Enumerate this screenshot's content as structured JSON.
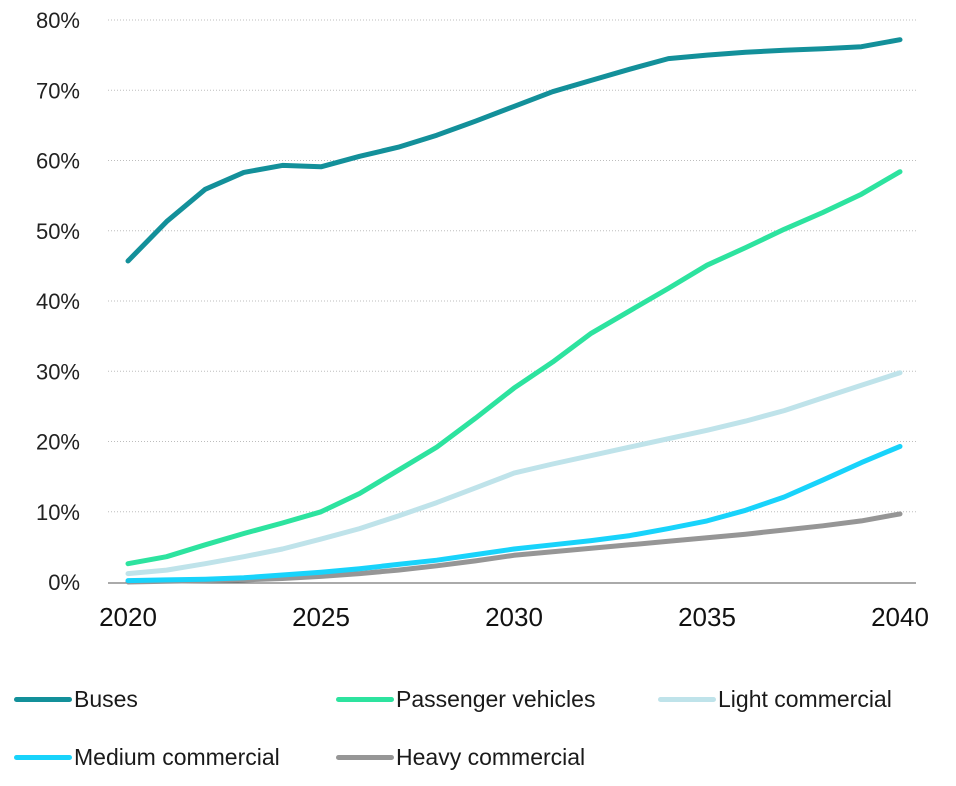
{
  "chart_data": {
    "type": "line",
    "x": [
      2020,
      2021,
      2022,
      2023,
      2024,
      2025,
      2026,
      2027,
      2028,
      2029,
      2030,
      2031,
      2032,
      2033,
      2034,
      2035,
      2036,
      2037,
      2038,
      2039,
      2040
    ],
    "xticks": [
      "2020",
      "2025",
      "2030",
      "2035",
      "2040"
    ],
    "xtick_values": [
      2020,
      2025,
      2030,
      2035,
      2040
    ],
    "yticks": [
      "0%",
      "10%",
      "20%",
      "30%",
      "40%",
      "50%",
      "60%",
      "70%",
      "80%"
    ],
    "ytick_values": [
      0,
      10,
      20,
      30,
      40,
      50,
      60,
      70,
      80
    ],
    "ylim": [
      0,
      80
    ],
    "xlim": [
      2020,
      2040
    ],
    "grid": true,
    "legend_position": "bottom",
    "series": [
      {
        "name": "Buses",
        "color": "#13909a",
        "values": [
          45.7,
          51.3,
          55.9,
          58.3,
          59.3,
          59.1,
          60.6,
          61.9,
          63.6,
          65.6,
          67.7,
          69.8,
          71.4,
          73.0,
          74.5,
          75.0,
          75.4,
          75.7,
          75.9,
          76.2,
          77.2
        ]
      },
      {
        "name": "Passenger vehicles",
        "color": "#2de39f",
        "values": [
          2.6,
          3.6,
          5.3,
          6.9,
          8.4,
          10.0,
          12.6,
          15.9,
          19.2,
          23.3,
          27.6,
          31.3,
          35.4,
          38.6,
          41.8,
          45.1,
          47.6,
          50.2,
          52.6,
          55.2,
          58.4
        ]
      },
      {
        "name": "Light commercial",
        "color": "#bfe3ea",
        "values": [
          1.2,
          1.7,
          2.6,
          3.6,
          4.7,
          6.1,
          7.6,
          9.4,
          11.3,
          13.4,
          15.5,
          16.8,
          18.0,
          19.2,
          20.4,
          21.6,
          22.9,
          24.4,
          26.2,
          28.0,
          29.8
        ]
      },
      {
        "name": "Medium commercial",
        "color": "#18d3fb",
        "values": [
          0.2,
          0.3,
          0.4,
          0.6,
          1.0,
          1.4,
          1.9,
          2.5,
          3.1,
          3.9,
          4.7,
          5.3,
          5.9,
          6.6,
          7.6,
          8.7,
          10.2,
          12.1,
          14.5,
          17.0,
          19.3
        ]
      },
      {
        "name": "Heavy commercial",
        "color": "#969696",
        "values": [
          0.0,
          0.1,
          0.2,
          0.3,
          0.5,
          0.8,
          1.2,
          1.7,
          2.3,
          3.0,
          3.8,
          4.3,
          4.8,
          5.3,
          5.8,
          6.3,
          6.8,
          7.4,
          8.0,
          8.7,
          9.7
        ]
      }
    ]
  }
}
